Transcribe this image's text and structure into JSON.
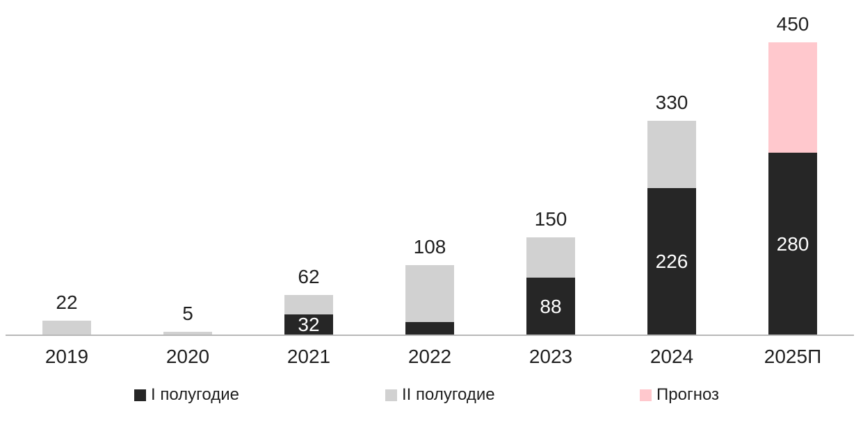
{
  "chart_data": {
    "type": "bar",
    "stacked": true,
    "grid": false,
    "legend_position": "bottom",
    "background": "#ffffff",
    "axis_color": "#b8b8b8",
    "label_color": "#1f1f1f",
    "inner_label_color": "#ffffff",
    "categories": [
      "2019",
      "2020",
      "2021",
      "2022",
      "2023",
      "2024",
      "2025П"
    ],
    "series": [
      {
        "name": "I полугодие",
        "color": "#262626",
        "values": [
          0,
          0,
          32,
          20,
          88,
          226,
          280
        ]
      },
      {
        "name": "II полугодие",
        "color": "#d1d1d1",
        "values": [
          22,
          5,
          30,
          88,
          62,
          104,
          0
        ]
      },
      {
        "name": "Прогноз",
        "color": "#ffc8cd",
        "values": [
          0,
          0,
          0,
          0,
          0,
          0,
          170
        ]
      }
    ],
    "totals": [
      22,
      5,
      62,
      108,
      150,
      330,
      450
    ],
    "total_labels": [
      "22",
      "5",
      "62",
      "108",
      "150",
      "330",
      "450"
    ],
    "inner_labels": [
      "",
      "",
      "32",
      "",
      "88",
      "226",
      "280"
    ],
    "ylim": [
      0,
      480
    ]
  }
}
